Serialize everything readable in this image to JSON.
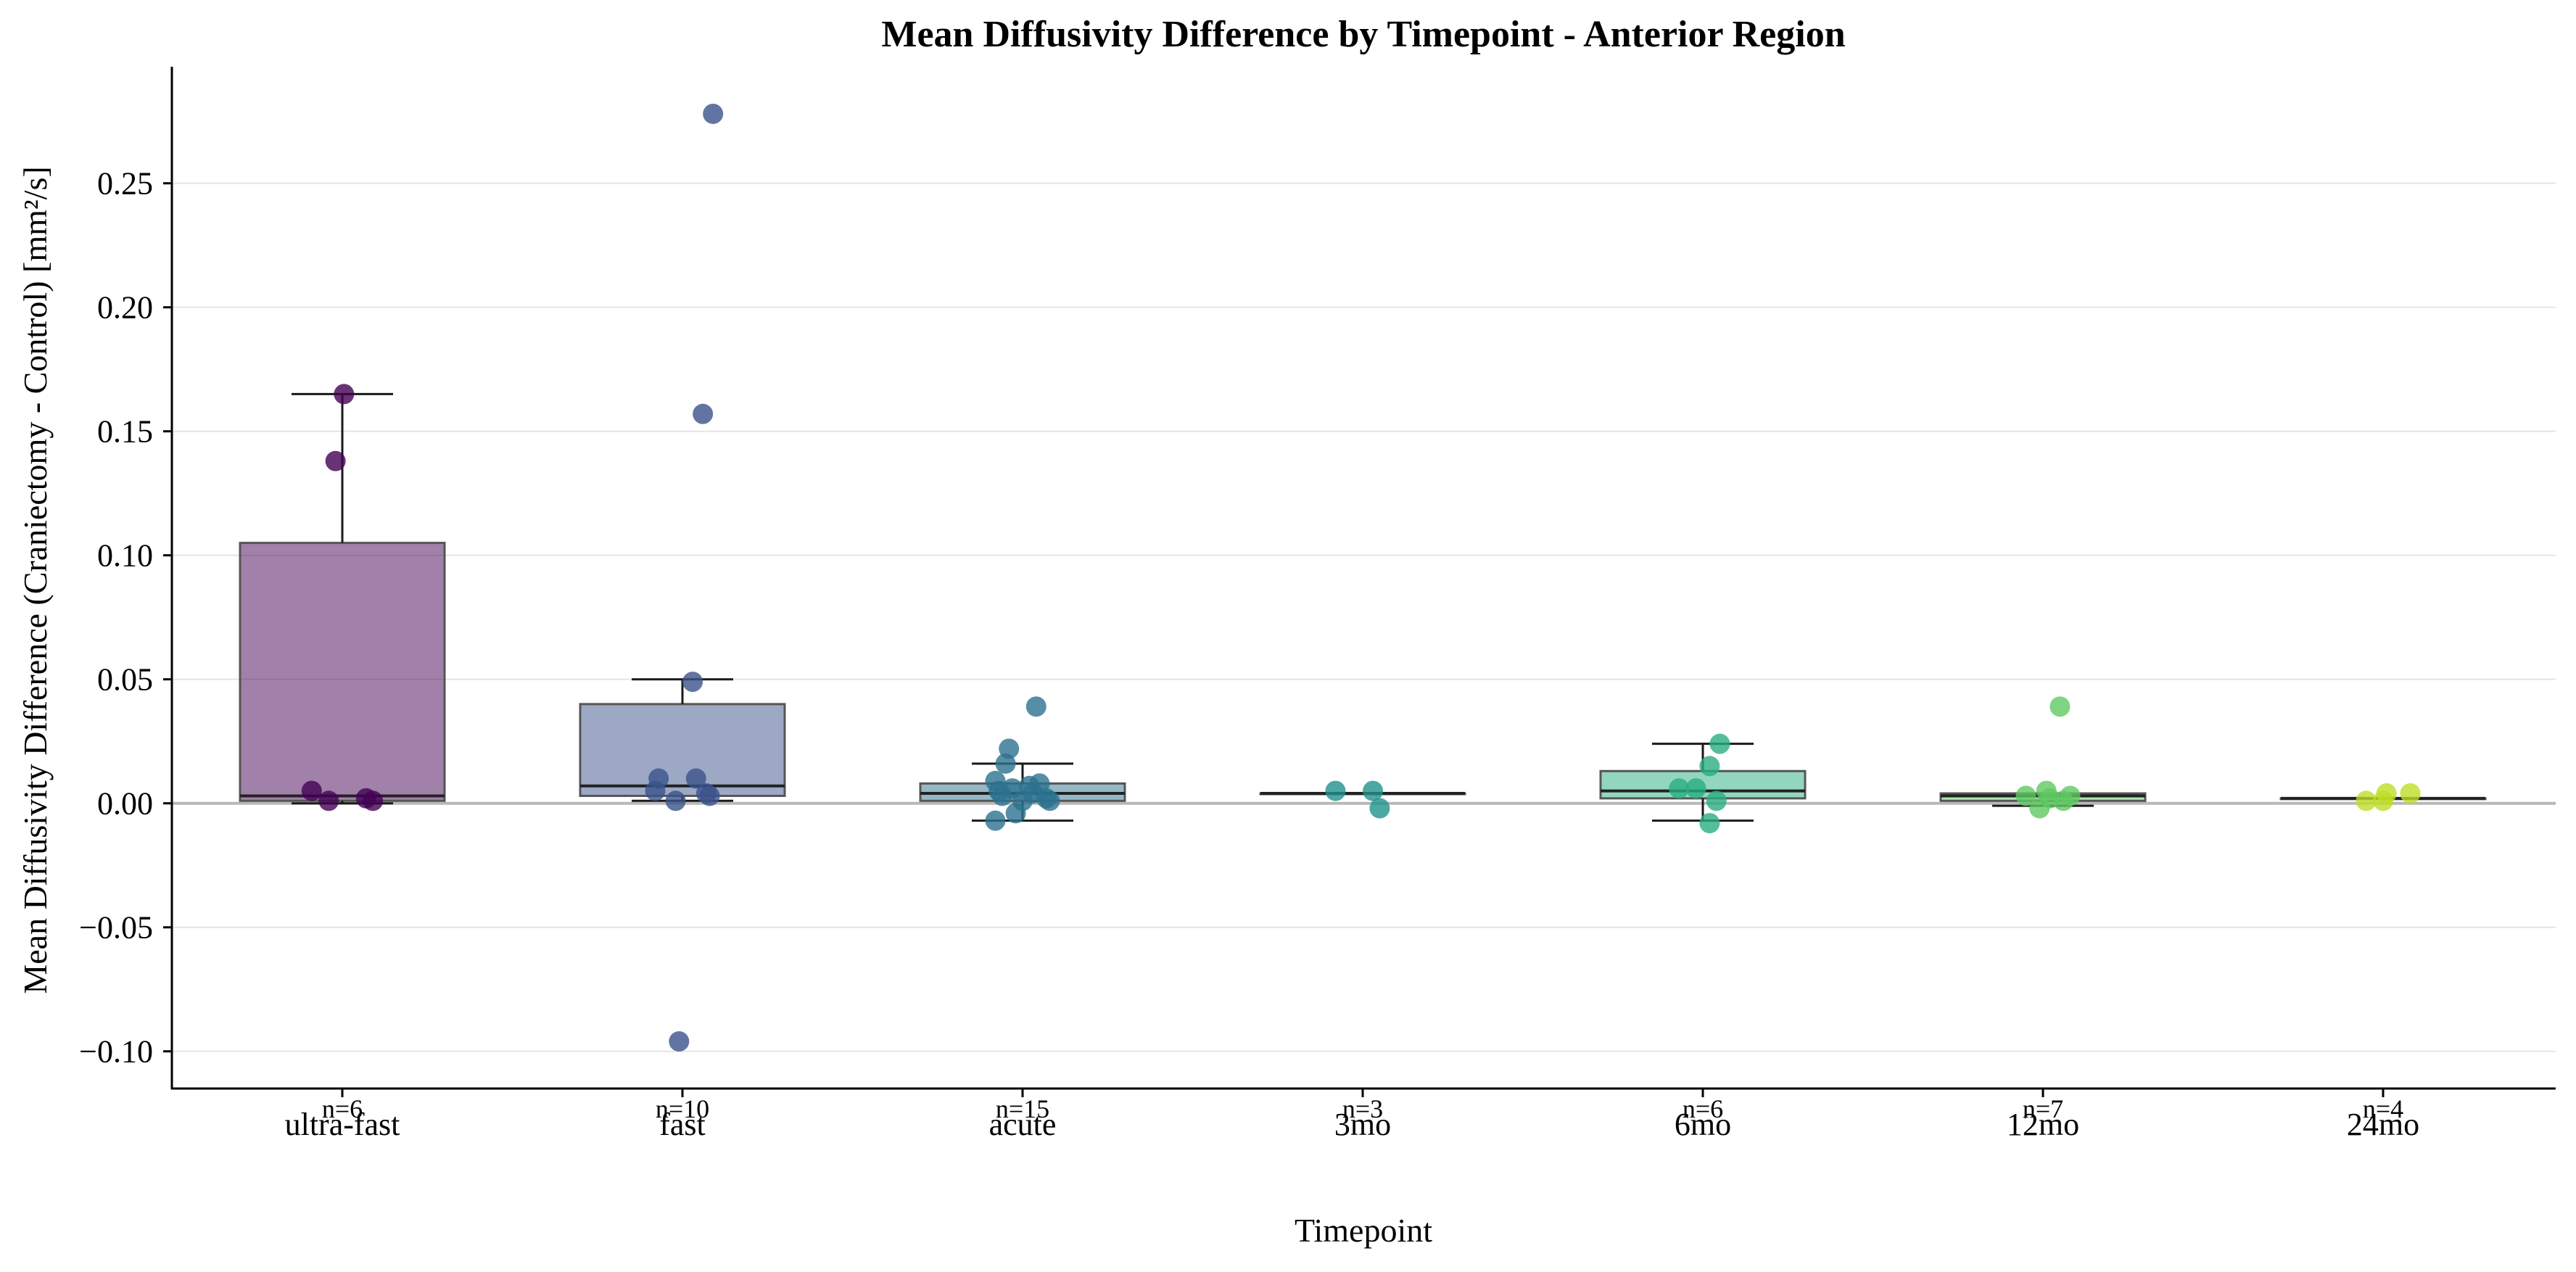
{
  "chart_data": {
    "type": "box",
    "title": "Mean Diffusivity Difference by Timepoint - Anterior Region",
    "xlabel": "Timepoint",
    "ylabel": "Mean Diffusivity Difference (Craniectomy - Control) [mm²/s]",
    "ylim": [
      -0.115,
      0.297
    ],
    "yticks": [
      -0.1,
      -0.05,
      0.0,
      0.05,
      0.1,
      0.15,
      0.2,
      0.25
    ],
    "ytick_labels": [
      "−0.10",
      "−0.05",
      "0.00",
      "0.05",
      "0.10",
      "0.15",
      "0.20",
      "0.25"
    ],
    "grid": "horizontal",
    "zero_line": true,
    "categories": [
      "ultra-fast",
      "fast",
      "acute",
      "3mo",
      "6mo",
      "12mo",
      "24mo"
    ],
    "n_labels": [
      "n=6",
      "n=10",
      "n=15",
      "n=3",
      "n=6",
      "n=7",
      "n=4"
    ],
    "colors": [
      "#440154",
      "#3b528b",
      "#2c728e",
      "#21918c",
      "#28ae80",
      "#5ec962",
      "#bddf26"
    ],
    "boxes": [
      {
        "q1": 0.001,
        "median": 0.003,
        "q3": 0.105,
        "whisker_low": 0.0,
        "whisker_high": 0.165
      },
      {
        "q1": 0.003,
        "median": 0.007,
        "q3": 0.04,
        "whisker_low": 0.001,
        "whisker_high": 0.05
      },
      {
        "q1": 0.001,
        "median": 0.004,
        "q3": 0.008,
        "whisker_low": -0.007,
        "whisker_high": 0.016
      },
      {
        "q1": 0.004,
        "median": 0.004,
        "q3": 0.004,
        "whisker_low": 0.004,
        "whisker_high": 0.004
      },
      {
        "q1": 0.002,
        "median": 0.005,
        "q3": 0.013,
        "whisker_low": -0.007,
        "whisker_high": 0.024
      },
      {
        "q1": 0.001,
        "median": 0.003,
        "q3": 0.004,
        "whisker_low": -0.001,
        "whisker_high": 0.004
      },
      {
        "q1": 0.002,
        "median": 0.002,
        "q3": 0.002,
        "whisker_low": 0.002,
        "whisker_high": 0.002
      }
    ],
    "points": [
      [
        [
          0.165,
          0.005
        ],
        [
          0.138,
          -0.02
        ],
        [
          0.005,
          -0.09
        ],
        [
          0.001,
          -0.04
        ],
        [
          0.002,
          0.07
        ],
        [
          0.001,
          0.09
        ]
      ],
      [
        [
          0.278,
          0.09
        ],
        [
          0.157,
          0.06
        ],
        [
          0.049,
          0.03
        ],
        [
          0.01,
          -0.07
        ],
        [
          0.01,
          0.04
        ],
        [
          0.005,
          -0.08
        ],
        [
          0.004,
          0.07
        ],
        [
          0.003,
          0.08
        ],
        [
          0.001,
          -0.02
        ],
        [
          -0.096,
          -0.01
        ]
      ],
      [
        [
          0.039,
          0.04
        ],
        [
          0.022,
          -0.04
        ],
        [
          0.016,
          -0.05
        ],
        [
          0.009,
          -0.08
        ],
        [
          0.008,
          0.05
        ],
        [
          0.007,
          0.02
        ],
        [
          0.006,
          -0.03
        ],
        [
          0.005,
          -0.07
        ],
        [
          0.004,
          0.03
        ],
        [
          0.003,
          -0.06
        ],
        [
          0.002,
          0.07
        ],
        [
          0.001,
          0.0
        ],
        [
          0.001,
          0.08
        ],
        [
          -0.004,
          -0.02
        ],
        [
          -0.007,
          -0.08
        ]
      ],
      [
        [
          0.005,
          -0.08
        ],
        [
          0.005,
          0.03
        ],
        [
          -0.002,
          0.05
        ]
      ],
      [
        [
          0.024,
          0.05
        ],
        [
          0.015,
          0.02
        ],
        [
          0.006,
          -0.07
        ],
        [
          0.006,
          -0.02
        ],
        [
          0.001,
          0.04
        ],
        [
          -0.008,
          0.02
        ]
      ],
      [
        [
          0.039,
          0.05
        ],
        [
          0.005,
          0.01
        ],
        [
          0.003,
          -0.05
        ],
        [
          0.003,
          0.08
        ],
        [
          0.002,
          0.02
        ],
        [
          0.001,
          0.06
        ],
        [
          -0.002,
          -0.01
        ]
      ],
      [
        [
          0.004,
          0.01
        ],
        [
          0.004,
          0.08
        ],
        [
          0.001,
          -0.05
        ],
        [
          0.001,
          0.0
        ]
      ]
    ]
  }
}
